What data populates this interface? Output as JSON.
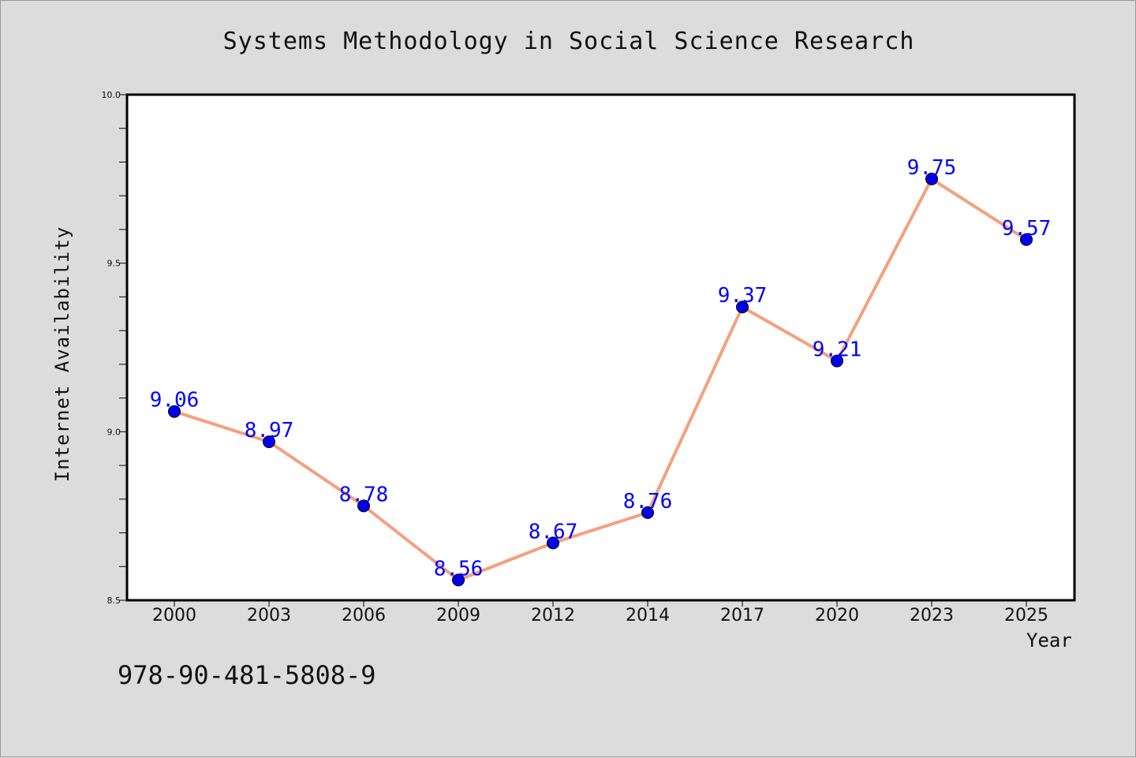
{
  "chart_data": {
    "type": "line",
    "title": "Systems Methodology in Social Science Research",
    "xlabel": "Year",
    "ylabel": "Internet Availability",
    "categories": [
      "2000",
      "2003",
      "2006",
      "2009",
      "2012",
      "2014",
      "2017",
      "2020",
      "2023",
      "2025"
    ],
    "series": [
      {
        "values": [
          9.06,
          8.97,
          8.78,
          8.56,
          8.67,
          8.76,
          9.37,
          9.21,
          9.75,
          9.57
        ]
      }
    ],
    "ylim": [
      8.5,
      10.0
    ],
    "yticks": [
      "8.5",
      "9.0",
      "9.5",
      "10.0"
    ],
    "grid": false,
    "line_color": "#f4a07e",
    "marker_color": "#0000ee",
    "label_color": "#0000ff"
  },
  "footer": {
    "isbn": "978-90-481-5808-9"
  }
}
